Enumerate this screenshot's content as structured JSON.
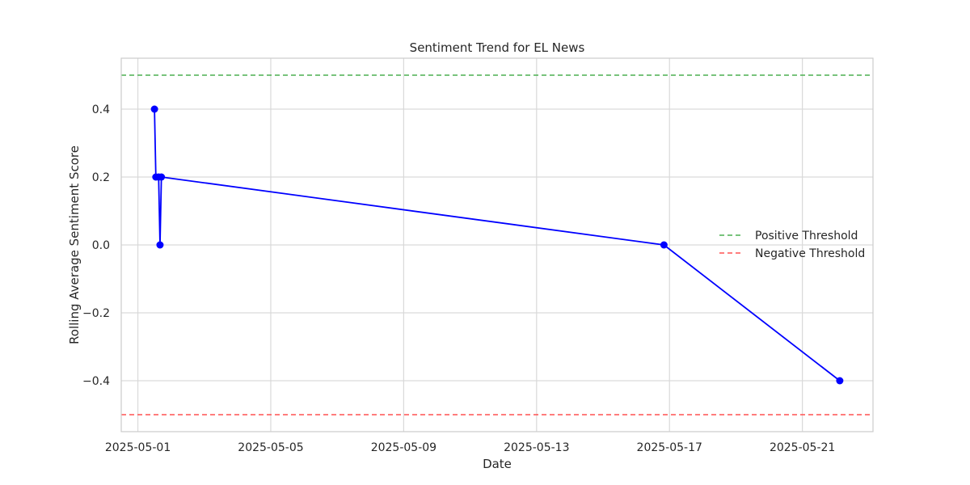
{
  "chart_data": {
    "type": "line",
    "title": "Sentiment Trend for EL News",
    "xlabel": "Date",
    "ylabel": "Rolling Average Sentiment Score",
    "x_ticks": [
      "2025-05-01",
      "2025-05-05",
      "2025-05-09",
      "2025-05-13",
      "2025-05-17",
      "2025-05-21"
    ],
    "y_ticks": [
      0.4,
      0.2,
      0.0,
      -0.2,
      -0.4
    ],
    "y_tick_labels": [
      "0.4",
      "0.2",
      "0.0",
      "−0.2",
      "−0.4"
    ],
    "xlim": [
      "2025-04-30 12:00",
      "2025-05-23 03:00"
    ],
    "ylim": [
      -0.55,
      0.55
    ],
    "grid": true,
    "series": [
      {
        "color": "#0000ff",
        "marker": "circle",
        "x": [
          "2025-05-01 12:00",
          "2025-05-01 13:00",
          "2025-05-01 15:00",
          "2025-05-01 16:00",
          "2025-05-01 17:00",
          "2025-05-16 20:00",
          "2025-05-22 03:00"
        ],
        "y": [
          0.4,
          0.2,
          0.2,
          0.0,
          0.2,
          0.0,
          -0.4
        ]
      }
    ],
    "thresholds": [
      {
        "name": "Positive Threshold",
        "value": 0.5,
        "color": "#4caf50",
        "style": "dashed"
      },
      {
        "name": "Negative Threshold",
        "value": -0.5,
        "color": "#ff5252",
        "style": "dashed"
      }
    ],
    "legend_position": "center-right"
  }
}
